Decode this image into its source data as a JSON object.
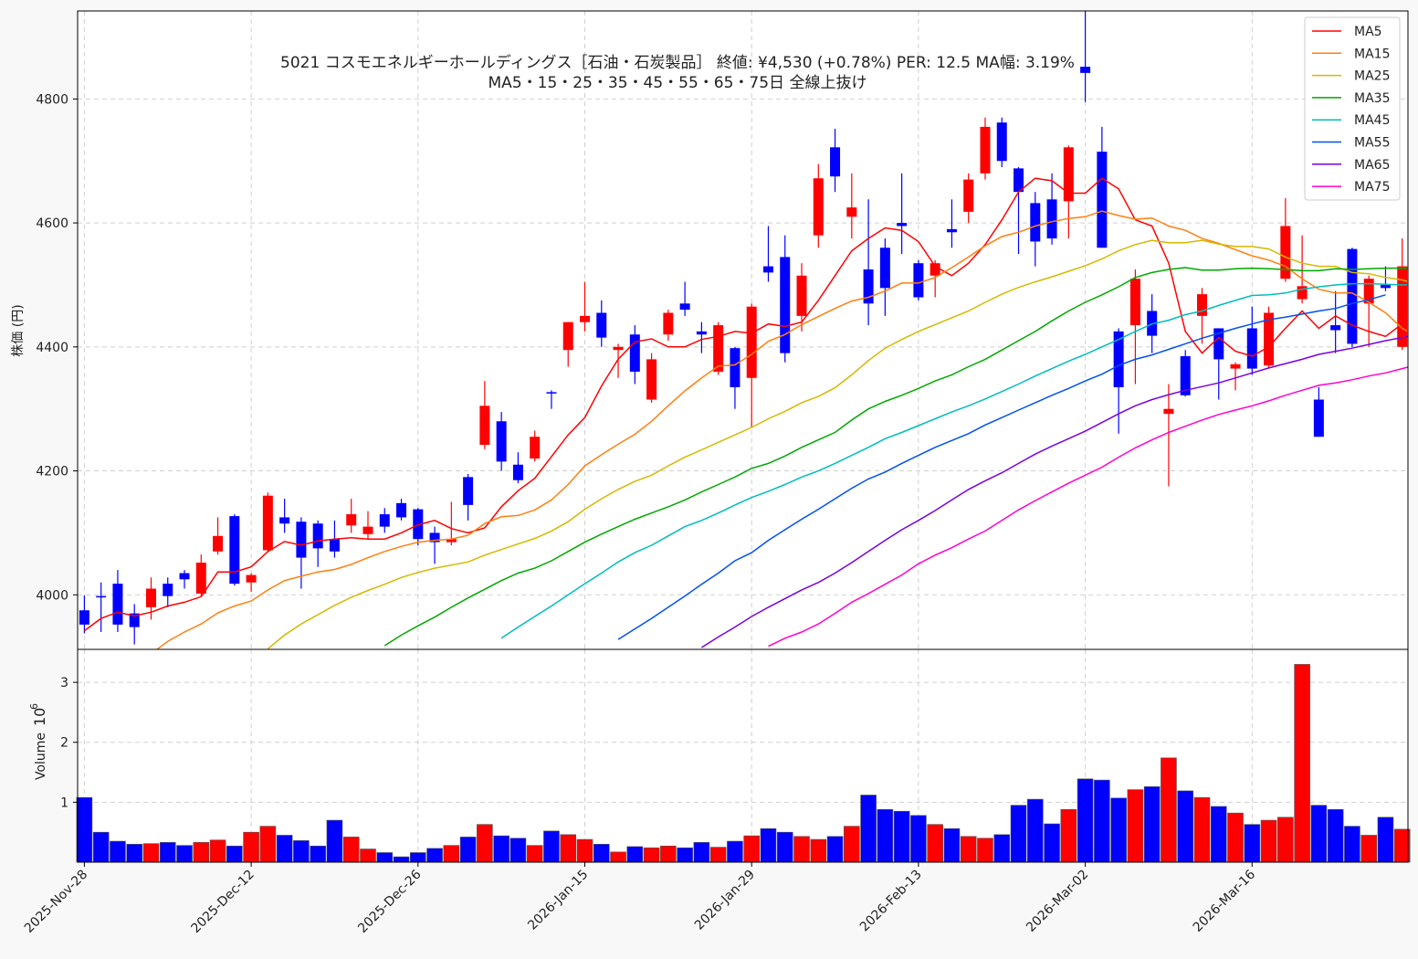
{
  "chart_data": {
    "type": "candlestick",
    "title_line1": "5021 コスモエネルギーホールディングス［石油・石炭製品］ 終値: ¥4,530 (+0.78%) PER: 12.5 MA幅: 3.19%",
    "title_line2": "MA5・15・25・35・45・55・65・75日 全線上抜け",
    "ylabel": "株価 (円)",
    "volume_ylabel": "Volume",
    "volume_exponent_base": "10",
    "volume_exponent": "6",
    "price_ylim": [
      3912,
      4942
    ],
    "price_yticks": [
      "4000",
      "4200",
      "4400",
      "4600",
      "4800"
    ],
    "volume_ylim": [
      0,
      3.55
    ],
    "volume_yticks": [
      "1",
      "2",
      "3"
    ],
    "xtick_labels": [
      {
        "index": 0,
        "label": "2025-Nov-28"
      },
      {
        "index": 10,
        "label": "2025-Dec-12"
      },
      {
        "index": 20,
        "label": "2025-Dec-26"
      },
      {
        "index": 30,
        "label": "2026-Jan-15"
      },
      {
        "index": 40,
        "label": "2026-Jan-29"
      },
      {
        "index": 50,
        "label": "2026-Feb-13"
      },
      {
        "index": 60,
        "label": "2026-Mar-02"
      },
      {
        "index": 70,
        "label": "2026-Mar-16"
      }
    ],
    "colors": {
      "up": "#ff0000",
      "down": "#0000ff",
      "grid": "#d0d0d0"
    },
    "candles": [
      [
        3975,
        3999,
        3938,
        3952,
        1.08
      ],
      [
        3998,
        4020,
        3940,
        3996,
        0.5
      ],
      [
        4018,
        4040,
        3940,
        3952,
        0.35
      ],
      [
        3970,
        3985,
        3920,
        3948,
        0.3
      ],
      [
        3980,
        4028,
        3960,
        4010,
        0.31
      ],
      [
        4018,
        4028,
        3980,
        3998,
        0.33
      ],
      [
        4035,
        4040,
        4010,
        4025,
        0.28
      ],
      [
        4002,
        4065,
        3998,
        4052,
        0.33
      ],
      [
        4070,
        4125,
        4065,
        4095,
        0.37
      ],
      [
        4127,
        4130,
        4015,
        4018,
        0.27
      ],
      [
        4020,
        4035,
        4005,
        4032,
        0.5
      ],
      [
        4072,
        4165,
        4070,
        4160,
        0.6
      ],
      [
        4125,
        4155,
        4100,
        4115,
        0.45
      ],
      [
        4118,
        4125,
        4010,
        4060,
        0.36
      ],
      [
        4115,
        4120,
        4045,
        4075,
        0.27
      ],
      [
        4090,
        4120,
        4060,
        4070,
        0.7
      ],
      [
        4112,
        4155,
        4100,
        4130,
        0.42
      ],
      [
        4098,
        4135,
        4090,
        4110,
        0.22
      ],
      [
        4130,
        4140,
        4100,
        4110,
        0.16
      ],
      [
        4148,
        4155,
        4120,
        4125,
        0.09
      ],
      [
        4138,
        4140,
        4080,
        4090,
        0.16
      ],
      [
        4100,
        4110,
        4050,
        4085,
        0.23
      ],
      [
        4085,
        4150,
        4080,
        4090,
        0.28
      ],
      [
        4190,
        4195,
        4120,
        4145,
        0.42
      ],
      [
        4242,
        4345,
        4235,
        4305,
        0.63
      ],
      [
        4280,
        4295,
        4200,
        4215,
        0.44
      ],
      [
        4210,
        4230,
        4180,
        4185,
        0.4
      ],
      [
        4220,
        4265,
        4215,
        4255,
        0.28
      ],
      [
        4327,
        4330,
        4300,
        4325,
        0.52
      ],
      [
        4395,
        4440,
        4368,
        4440,
        0.46
      ],
      [
        4440,
        4505,
        4425,
        4450,
        0.38
      ],
      [
        4455,
        4475,
        4400,
        4415,
        0.3
      ],
      [
        4395,
        4405,
        4350,
        4400,
        0.17
      ],
      [
        4420,
        4435,
        4340,
        4360,
        0.26
      ],
      [
        4315,
        4390,
        4310,
        4380,
        0.24
      ],
      [
        4420,
        4460,
        4410,
        4455,
        0.27
      ],
      [
        4470,
        4505,
        4450,
        4460,
        0.24
      ],
      [
        4425,
        4440,
        4390,
        4420,
        0.33
      ],
      [
        4360,
        4440,
        4355,
        4435,
        0.25
      ],
      [
        4398,
        4400,
        4300,
        4335,
        0.35
      ],
      [
        4350,
        4470,
        4270,
        4465,
        0.44
      ],
      [
        4530,
        4595,
        4505,
        4520,
        0.56
      ],
      [
        4545,
        4580,
        4375,
        4390,
        0.5
      ],
      [
        4450,
        4535,
        4425,
        4515,
        0.43
      ],
      [
        4580,
        4695,
        4560,
        4672,
        0.38
      ],
      [
        4722,
        4752,
        4650,
        4675,
        0.43
      ],
      [
        4610,
        4680,
        4575,
        4625,
        0.6
      ],
      [
        4525,
        4638,
        4435,
        4470,
        1.12
      ],
      [
        4560,
        4575,
        4450,
        4495,
        0.88
      ],
      [
        4600,
        4680,
        4550,
        4595,
        0.85
      ],
      [
        4535,
        4540,
        4475,
        4480,
        0.78
      ],
      [
        4515,
        4540,
        4480,
        4535,
        0.63
      ],
      [
        4590,
        4638,
        4560,
        4585,
        0.56
      ],
      [
        4618,
        4680,
        4600,
        4670,
        0.43
      ],
      [
        4680,
        4770,
        4670,
        4755,
        0.4
      ],
      [
        4762,
        4770,
        4690,
        4700,
        0.46
      ],
      [
        4688,
        4690,
        4550,
        4650,
        0.95
      ],
      [
        4632,
        4650,
        4530,
        4570,
        1.05
      ],
      [
        4638,
        4680,
        4565,
        4575,
        0.64
      ],
      [
        4635,
        4725,
        4575,
        4722,
        0.88
      ],
      [
        4852,
        4942,
        4795,
        4842,
        1.39
      ],
      [
        4715,
        4755,
        4560,
        4560,
        1.37
      ],
      [
        4425,
        4430,
        4260,
        4335,
        1.07
      ],
      [
        4435,
        4525,
        4340,
        4510,
        1.21
      ],
      [
        4458,
        4485,
        4390,
        4418,
        1.26
      ],
      [
        4292,
        4340,
        4175,
        4300,
        1.74
      ],
      [
        4385,
        4395,
        4320,
        4322,
        1.19
      ],
      [
        4450,
        4495,
        4405,
        4485,
        1.08
      ],
      [
        4430,
        4430,
        4315,
        4380,
        0.93
      ],
      [
        4365,
        4375,
        4330,
        4372,
        0.82
      ],
      [
        4430,
        4465,
        4355,
        4365,
        0.63
      ],
      [
        4370,
        4465,
        4365,
        4455,
        0.7
      ],
      [
        4510,
        4640,
        4505,
        4595,
        0.75
      ],
      [
        4477,
        4580,
        4470,
        4498,
        3.3
      ],
      [
        4315,
        4335,
        4255,
        4255,
        0.95
      ],
      [
        4435,
        4490,
        4390,
        4427,
        0.88
      ],
      [
        4558,
        4560,
        4400,
        4405,
        0.6
      ],
      [
        4470,
        4515,
        4400,
        4510,
        0.45
      ],
      [
        4500,
        4530,
        4490,
        4495,
        0.75
      ],
      [
        4400,
        4575,
        4395,
        4530,
        0.55
      ]
    ],
    "series": [
      {
        "name": "MA5",
        "color": "#ff0000",
        "start": 0,
        "values": [
          3942,
          3962,
          3972,
          3966,
          3972,
          3982,
          3988,
          3997,
          4037,
          4037,
          4045,
          4070,
          4086,
          4080,
          4087,
          4090,
          4092,
          4090,
          4090,
          4100,
          4113,
          4120,
          4107,
          4100,
          4108,
          4142,
          4168,
          4188,
          4223,
          4258,
          4286,
          4337,
          4380,
          4408,
          4413,
          4400,
          4400,
          4412,
          4417,
          4425,
          4422,
          4437,
          4433,
          4440,
          4475,
          4515,
          4555,
          4575,
          4592,
          4588,
          4570,
          4530,
          4515,
          4535,
          4565,
          4605,
          4650,
          4672,
          4668,
          4648,
          4648,
          4672,
          4655,
          4605,
          4595,
          4535,
          4425,
          4390,
          4415,
          4393,
          4385,
          4400,
          4430,
          4458,
          4430,
          4450,
          4435,
          4425,
          4417,
          4437
        ]
      },
      {
        "name": "MA15",
        "color": "#ff7f0e",
        "start": 4,
        "values": [
          3905,
          3925,
          3940,
          3953,
          3971,
          3982,
          3990,
          4008,
          4023,
          4030,
          4037,
          4041,
          4049,
          4060,
          4070,
          4078,
          4085,
          4088,
          4090,
          4096,
          4115,
          4126,
          4128,
          4137,
          4153,
          4178,
          4208,
          4226,
          4243,
          4259,
          4280,
          4305,
          4329,
          4350,
          4369,
          4371,
          4388,
          4409,
          4420,
          4436,
          4449,
          4462,
          4474,
          4480,
          4490,
          4503,
          4503,
          4512,
          4528,
          4545,
          4563,
          4578,
          4585,
          4595,
          4602,
          4607,
          4610,
          4619,
          4612,
          4606,
          4608,
          4595,
          4588,
          4575,
          4567,
          4557,
          4547,
          4540,
          4530,
          4510,
          4493,
          4487,
          4487,
          4472,
          4455,
          4430,
          4415,
          4425,
          4425,
          4432
        ]
      },
      {
        "name": "MA25",
        "color": "#d4b800",
        "start": 11,
        "values": [
          3913,
          3935,
          3953,
          3968,
          3983,
          3996,
          4007,
          4017,
          4028,
          4036,
          4043,
          4048,
          4053,
          4064,
          4073,
          4082,
          4091,
          4103,
          4118,
          4138,
          4155,
          4170,
          4183,
          4193,
          4208,
          4222,
          4234,
          4246,
          4258,
          4270,
          4284,
          4296,
          4310,
          4320,
          4334,
          4355,
          4378,
          4398,
          4412,
          4425,
          4436,
          4447,
          4458,
          4472,
          4485,
          4496,
          4505,
          4513,
          4522,
          4531,
          4542,
          4555,
          4565,
          4572,
          4568,
          4568,
          4572,
          4566,
          4562,
          4562,
          4558,
          4545,
          4535,
          4530,
          4530,
          4520,
          4518,
          4512,
          4508,
          4500,
          4495
        ]
      },
      {
        "name": "MA35",
        "color": "#00a800",
        "start": 18,
        "values": [
          3918,
          3935,
          3950,
          3964,
          3980,
          3995,
          4009,
          4023,
          4035,
          4043,
          4055,
          4070,
          4085,
          4098,
          4110,
          4122,
          4132,
          4142,
          4153,
          4166,
          4178,
          4190,
          4204,
          4212,
          4224,
          4238,
          4250,
          4262,
          4282,
          4300,
          4312,
          4322,
          4333,
          4345,
          4355,
          4368,
          4380,
          4395,
          4410,
          4425,
          4442,
          4458,
          4472,
          4484,
          4497,
          4512,
          4520,
          4525,
          4528,
          4524,
          4524,
          4526,
          4527,
          4526,
          4525,
          4523,
          4523,
          4526,
          4525,
          4526,
          4527,
          4527,
          4527,
          4525,
          4524,
          4524
        ]
      },
      {
        "name": "MA45",
        "color": "#00bcbc",
        "start": 25,
        "values": [
          3930,
          3948,
          3965,
          3982,
          4000,
          4018,
          4035,
          4053,
          4068,
          4080,
          4095,
          4110,
          4120,
          4132,
          4145,
          4157,
          4167,
          4178,
          4190,
          4200,
          4212,
          4225,
          4238,
          4252,
          4262,
          4273,
          4284,
          4295,
          4305,
          4316,
          4328,
          4340,
          4353,
          4365,
          4377,
          4388,
          4400,
          4412,
          4425,
          4437,
          4443,
          4452,
          4458,
          4467,
          4475,
          4483,
          4484,
          4487,
          4493,
          4497,
          4500,
          4502,
          4502,
          4501,
          4500,
          4501,
          4503,
          4505,
          4508
        ]
      },
      {
        "name": "MA55",
        "color": "#0050f0",
        "start": 32,
        "values": [
          3928,
          3945,
          3962,
          3980,
          3998,
          4017,
          4035,
          4055,
          4068,
          4088,
          4105,
          4122,
          4138,
          4155,
          4172,
          4187,
          4198,
          4212,
          4225,
          4238,
          4249,
          4260,
          4274,
          4286,
          4298,
          4310,
          4322,
          4333,
          4345,
          4356,
          4370,
          4380,
          4387,
          4396,
          4405,
          4414,
          4422,
          4430,
          4437,
          4444,
          4448,
          4453,
          4458,
          4462,
          4470,
          4476,
          4484
        ]
      },
      {
        "name": "MA65",
        "color": "#7a00e0",
        "start": 37,
        "values": [
          3915,
          3932,
          3948,
          3965,
          3980,
          3994,
          4008,
          4020,
          4035,
          4052,
          4070,
          4088,
          4105,
          4120,
          4136,
          4153,
          4170,
          4184,
          4197,
          4212,
          4227,
          4240,
          4252,
          4264,
          4278,
          4292,
          4305,
          4315,
          4323,
          4330,
          4336,
          4342,
          4350,
          4358,
          4366,
          4373,
          4380,
          4388,
          4393,
          4398,
          4404,
          4410,
          4415,
          4421
        ]
      },
      {
        "name": "MA75",
        "color": "#ff00d0",
        "start": 41,
        "values": [
          3917,
          3930,
          3940,
          3953,
          3970,
          3988,
          4002,
          4017,
          4032,
          4050,
          4064,
          4076,
          4090,
          4103,
          4120,
          4137,
          4152,
          4166,
          4180,
          4193,
          4206,
          4222,
          4237,
          4250,
          4262,
          4272,
          4282,
          4291,
          4298,
          4305,
          4313,
          4322,
          4330,
          4338,
          4342,
          4347,
          4353,
          4358,
          4365,
          4372
        ]
      }
    ]
  }
}
